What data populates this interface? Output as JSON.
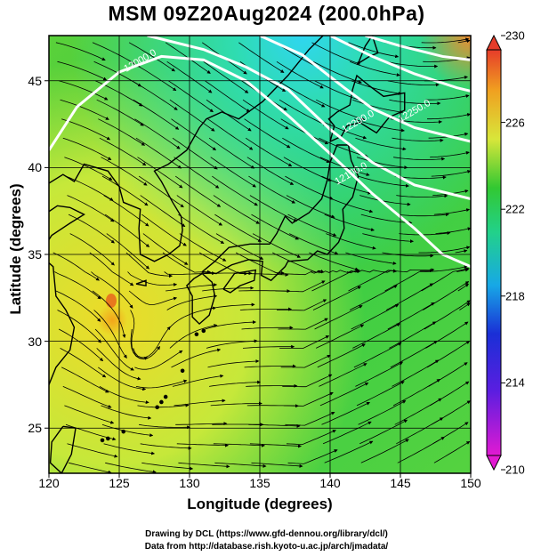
{
  "figure": {
    "title": "MSM 09Z20Aug2024 (200.0hPa)",
    "xlabel": "Longitude (degrees)",
    "ylabel": "Latitude  (degrees)",
    "credit_line1": "Drawing by DCL (https://www.gfd-dennou.org/library/dcl/)",
    "credit_line2": "Data from http://database.rish.kyoto-u.ac.jp/arch/jmadata/"
  },
  "chart_data": {
    "type": "heatmap",
    "description_kind": "temperature shading with streamlines and geopotential height contours",
    "x_range": [
      120,
      150
    ],
    "y_range": [
      22.4,
      47.6
    ],
    "x_ticks": [
      120,
      125,
      130,
      135,
      140,
      145,
      150
    ],
    "y_ticks": [
      25,
      30,
      35,
      40,
      45
    ],
    "colorbar": {
      "range": [
        210,
        230
      ],
      "ticks": [
        210,
        214,
        218,
        222,
        226,
        230
      ],
      "colors": [
        "#e11ad2",
        "#1a2fd6",
        "#17a8e6",
        "#22d18a",
        "#32c832",
        "#d8e63a",
        "#f0a020",
        "#e63c2a"
      ]
    },
    "contours": [
      {
        "label": "12000.0",
        "lon": 125.5,
        "lat": 45.5
      },
      {
        "label": "12100.0",
        "lon": 140.5,
        "lat": 39.0
      },
      {
        "label": "12200.0",
        "lon": 141.0,
        "lat": 42.0
      },
      {
        "label": "12250.0",
        "lon": 145.0,
        "lat": 42.6
      }
    ],
    "grid": true
  }
}
